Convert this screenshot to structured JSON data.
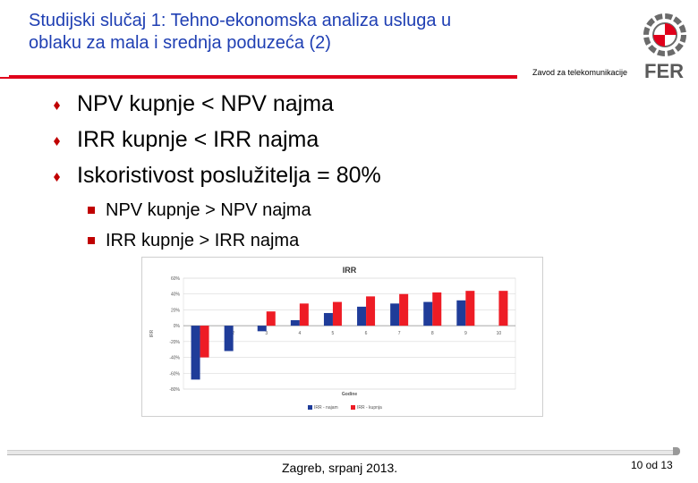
{
  "slide": {
    "title_line1": "Studijski slučaj 1: Tehno-ekonomska analiza usluga u",
    "title_line2": "oblaku za mala i srednja poduzeća (2)",
    "department": "Zavod za telekomunikacije",
    "logo_text": "FER",
    "accent_color": "#e0001b",
    "title_color": "#1f3fb3"
  },
  "bullets": [
    {
      "text": "NPV kupnje < NPV najma"
    },
    {
      "text": "IRR kupnje < IRR najma"
    },
    {
      "text": "Iskoristivost poslužitelja = 80%"
    }
  ],
  "sub_bullets": [
    {
      "text": "NPV kupnje > NPV najma"
    },
    {
      "text": "IRR kupnje > IRR najma"
    }
  ],
  "chart_data": {
    "type": "bar",
    "title": "IRR",
    "xlabel": "Godine",
    "ylabel": "IRR",
    "categories": [
      "1",
      "2",
      "3",
      "4",
      "5",
      "6",
      "7",
      "8",
      "9",
      "10"
    ],
    "ylim": [
      -80,
      60
    ],
    "yticks": [
      "60%",
      "40%",
      "20%",
      "0%",
      "-20%",
      "-40%",
      "-60%",
      "-80%"
    ],
    "ytick_values": [
      60,
      40,
      20,
      0,
      -20,
      -40,
      -60,
      -80
    ],
    "grid": true,
    "legend_position": "bottom",
    "series": [
      {
        "name": "IRR - najam",
        "color": "#1f3c99",
        "values": [
          -68,
          -32,
          -7,
          7,
          16,
          24,
          28,
          30,
          32,
          null
        ]
      },
      {
        "name": "IRR - kupnja",
        "color": "#ee1c25",
        "values": [
          -40,
          null,
          18,
          28,
          30,
          37,
          40,
          42,
          44,
          44
        ]
      }
    ]
  },
  "footer": {
    "location_date": "Zagreb, srpanj 2013.",
    "page": "10 od 13"
  }
}
